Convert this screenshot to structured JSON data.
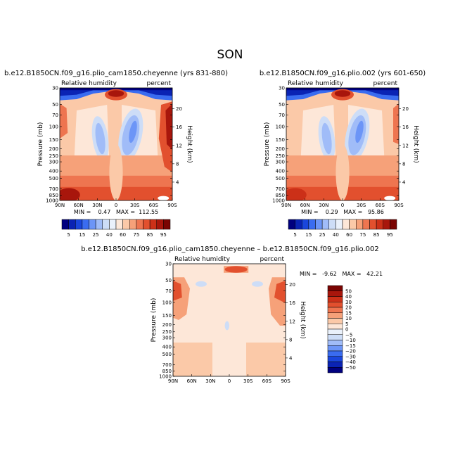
{
  "page": {
    "season_title": "SON"
  },
  "colors": {
    "blues": [
      "#00007f",
      "#0a23b4",
      "#1a46dc",
      "#3a6cf0",
      "#6c95f7",
      "#a0bcf8",
      "#cdddf7",
      "#eaf1fb"
    ],
    "reds": [
      "#fde7d8",
      "#fbc9a8",
      "#f6a179",
      "#ee7550",
      "#e2502e",
      "#cc3018",
      "#a8160c",
      "#7a0402"
    ]
  },
  "chart_data": [
    {
      "id": "p1",
      "type": "contour",
      "title": "b.e12.B1850CN.f09_g16.plio_cam1850.cheyenne (yrs 831-880)",
      "left_label": "Relative humidity",
      "right_label": "percent",
      "xlabel": "",
      "ylabel": "Pressure (mb)",
      "y2label": "Height (km)",
      "x_ticks": [
        "90N",
        "60N",
        "30N",
        "0",
        "30S",
        "60S",
        "90S"
      ],
      "y_ticks": [
        "30",
        "50",
        "70",
        "100",
        "150",
        "200",
        "250",
        "300",
        "400",
        "500",
        "700",
        "850",
        "1000"
      ],
      "y_range_mb": [
        1000,
        30
      ],
      "height_ticks": [
        "20",
        "16",
        "12",
        "8",
        "4"
      ],
      "stats": "MIN =    0.47   MAX =  112.55",
      "min": 0.47,
      "max": 112.55,
      "colorbar_labels": [
        "5",
        "15",
        "25",
        "40",
        "60",
        "75",
        "85",
        "95"
      ]
    },
    {
      "id": "p2",
      "type": "contour",
      "title": "b.e12.B1850CN.f09_g16.plio.002 (yrs 601-650)",
      "left_label": "Relative humidity",
      "right_label": "percent",
      "xlabel": "",
      "ylabel": "Pressure (mb)",
      "y2label": "Height (km)",
      "x_ticks": [
        "90N",
        "60N",
        "30N",
        "0",
        "30S",
        "60S",
        "90S"
      ],
      "y_ticks": [
        "30",
        "50",
        "70",
        "100",
        "150",
        "200",
        "250",
        "300",
        "400",
        "500",
        "700",
        "850",
        "1000"
      ],
      "y_range_mb": [
        1000,
        30
      ],
      "height_ticks": [
        "20",
        "16",
        "12",
        "8",
        "4"
      ],
      "stats": "MIN =    0.29   MAX =   95.86",
      "min": 0.29,
      "max": 95.86,
      "colorbar_labels": [
        "5",
        "15",
        "25",
        "40",
        "60",
        "75",
        "85",
        "95"
      ]
    },
    {
      "id": "diff",
      "type": "contour",
      "title": "b.e12.B1850CN.f09_g16.plio_cam1850.cheyenne – b.e12.B1850CN.f09_g16.plio.002",
      "left_label": "Relative humidity",
      "right_label": "percent",
      "xlabel": "",
      "ylabel": "Pressure (mb)",
      "y2label": "Height (km)",
      "x_ticks": [
        "90N",
        "60N",
        "30N",
        "0",
        "30S",
        "60S",
        "90S"
      ],
      "y_ticks": [
        "30",
        "50",
        "70",
        "100",
        "150",
        "200",
        "250",
        "300",
        "400",
        "500",
        "700",
        "850",
        "1000"
      ],
      "y_range_mb": [
        1000,
        30
      ],
      "height_ticks": [
        "20",
        "16",
        "12",
        "8",
        "4"
      ],
      "stats": "MIN =   -9.62   MAX =   42.21",
      "min": -9.62,
      "max": 42.21,
      "colorbar_labels": [
        "50",
        "40",
        "30",
        "20",
        "15",
        "10",
        "5",
        "0",
        "−5",
        "−10",
        "−15",
        "−20",
        "−30",
        "−40",
        "−50"
      ]
    }
  ]
}
